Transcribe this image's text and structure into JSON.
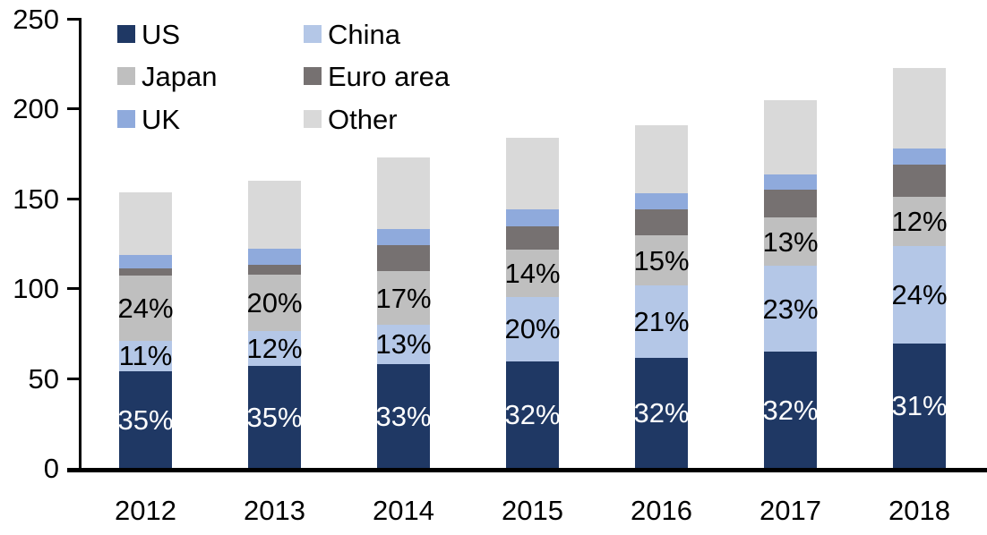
{
  "chart_data": {
    "type": "bar",
    "stacked": true,
    "title": "",
    "categories": [
      "2012",
      "2013",
      "2014",
      "2015",
      "2016",
      "2017",
      "2018"
    ],
    "series": [
      {
        "name": "US",
        "color": "#1F3864",
        "label_color": "#FFFFFF",
        "values": [
          54,
          57,
          58,
          59.5,
          61.5,
          65,
          69.5
        ],
        "labels": [
          "35%",
          "35%",
          "33%",
          "32%",
          "32%",
          "32%",
          "31%"
        ]
      },
      {
        "name": "China",
        "color": "#B4C7E7",
        "label_color": "#000000",
        "values": [
          17,
          19.5,
          22,
          36,
          40,
          47.5,
          54
        ],
        "labels": [
          "11%",
          "12%",
          "13%",
          "20%",
          "21%",
          "23%",
          "24%"
        ]
      },
      {
        "name": "Japan",
        "color": "#BFBFBF",
        "label_color": "#000000",
        "values": [
          36,
          31,
          29.5,
          26,
          28,
          27,
          27.5
        ],
        "labels": [
          "24%",
          "20%",
          "17%",
          "14%",
          "15%",
          "13%",
          "12%"
        ]
      },
      {
        "name": "Euro area",
        "color": "#767171",
        "label_color": null,
        "values": [
          4,
          5.5,
          14.5,
          13,
          14.5,
          15.5,
          18
        ],
        "labels": null
      },
      {
        "name": "UK",
        "color": "#8FAADC",
        "label_color": null,
        "values": [
          7.5,
          9,
          9,
          9.5,
          9,
          8.5,
          9
        ],
        "labels": null
      },
      {
        "name": "Other",
        "color": "#D9D9D9",
        "label_color": null,
        "values": [
          35,
          38,
          40,
          40,
          38,
          41,
          44.5
        ],
        "labels": null
      }
    ],
    "totals": [
      153.5,
      160,
      173,
      184,
      191,
      204.5,
      222.5
    ],
    "xlabel": "",
    "ylabel": "",
    "y_axis": {
      "min": 0,
      "max": 250,
      "tick_step": 50,
      "ticks": [
        0,
        50,
        100,
        150,
        200,
        250
      ]
    },
    "grid": false,
    "legend": {
      "position": "top-left",
      "columns": 2,
      "order": [
        "US",
        "China",
        "Japan",
        "Euro area",
        "UK",
        "Other"
      ]
    },
    "axis_color": "#000000",
    "background_color": "#FFFFFF"
  }
}
